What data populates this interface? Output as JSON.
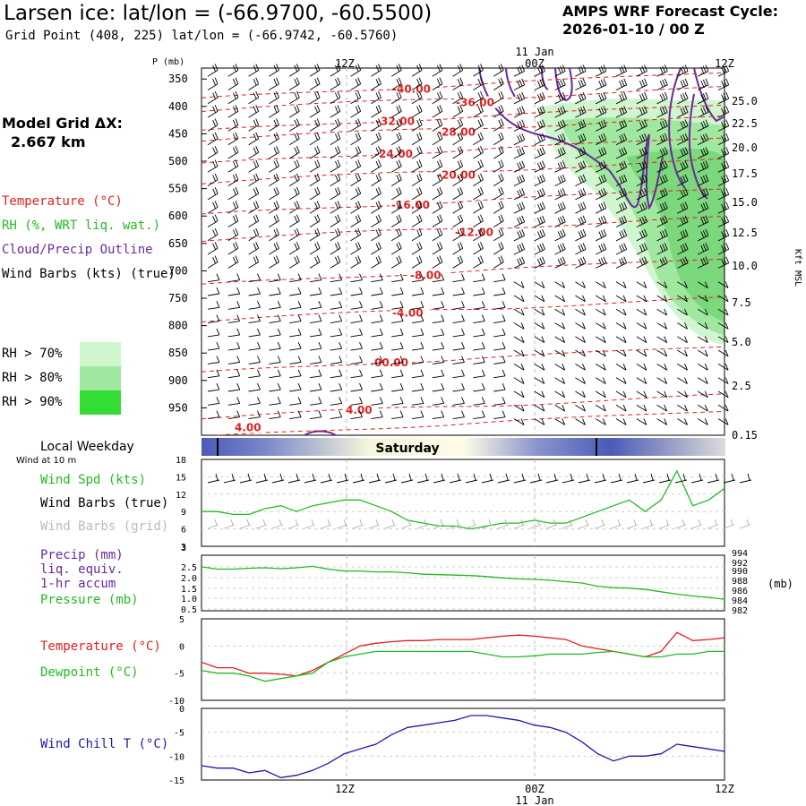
{
  "header": {
    "title": "Larsen ice:  lat/lon = (-66.9700, -60.5500)",
    "subtitle": "Grid Point (408, 225) lat/lon = (-66.9742, -60.5760)",
    "cycle_line1": "AMPS WRF Forecast Cycle:",
    "cycle_line2": "2026-01-10 / 00  Z"
  },
  "model_grid": {
    "label": "Model Grid ΔX:",
    "value": "2.667 km"
  },
  "legend": {
    "temperature": "Temperature (°C)",
    "rh": "RH (%, WRT liq. wat.)",
    "cloud": "Cloud/Precip Outline",
    "wind_barbs": "Wind Barbs (kts) (true)",
    "rh70": "RH > 70%",
    "rh80": "RH > 80%",
    "rh90": "RH > 90%"
  },
  "colors": {
    "temperature": "#e02020",
    "rh": "#22bb22",
    "cloud": "#6a2a9a",
    "wind_chill": "#1a1aaa",
    "rh70": "#d0f6d0",
    "rh80": "#a0e8a0",
    "rh90": "#33dd33"
  },
  "chart_data": [
    {
      "type": "cross-section",
      "title": "Time-pressure cross section",
      "ylabel": "P (mb)",
      "y2label": "Kft MSL",
      "pressure_ticks": [
        "350",
        "400",
        "450",
        "500",
        "550",
        "600",
        "650",
        "700",
        "750",
        "800",
        "850",
        "900",
        "950"
      ],
      "height_ticks": [
        "25.0",
        "22.5",
        "20.0",
        "17.5",
        "15.0",
        "12.5",
        "10.0",
        "7.5",
        "5.0",
        "2.5",
        "0.15"
      ],
      "time_ticks": [
        "12Z",
        "00Z",
        "12Z"
      ],
      "date_label": "11 Jan",
      "temperature_contours": [
        {
          "label": "-40.00",
          "p": 368
        },
        {
          "label": "-36.00",
          "p": 393
        },
        {
          "label": "-32.00",
          "p": 427
        },
        {
          "label": "-28.00",
          "p": 447
        },
        {
          "label": "-24.00",
          "p": 487
        },
        {
          "label": "-20.00",
          "p": 525
        },
        {
          "label": "-16.00",
          "p": 580
        },
        {
          "label": "-12.00",
          "p": 630
        },
        {
          "label": "-8.00",
          "p": 708
        },
        {
          "label": "-4.00",
          "p": 777
        },
        {
          "label": "00.00",
          "p": 868
        },
        {
          "label": "4.00",
          "p": 954
        },
        {
          "label": "4.00",
          "p": 986
        }
      ]
    },
    {
      "type": "line",
      "title": "Wind Spd (kts)",
      "ylim": [
        3,
        18
      ],
      "y_ticks": [
        "18",
        "15",
        "12",
        "9",
        "6",
        "3"
      ],
      "values": [
        9,
        9,
        8.5,
        8.5,
        9.5,
        10,
        9,
        10,
        10.5,
        11,
        11,
        10,
        9,
        7.5,
        7,
        6.5,
        6.5,
        6,
        6.5,
        7,
        7,
        7.5,
        7,
        7,
        8,
        9,
        10,
        11,
        9,
        11,
        16,
        10,
        11,
        13
      ]
    },
    {
      "type": "line",
      "title": "Pressure (mb)",
      "y_ticks": [
        "2.5",
        "2.0",
        "1.5",
        "1.0",
        "0.5",
        "3"
      ],
      "y2_ticks": [
        "994",
        "992",
        "990",
        "988",
        "986",
        "984",
        "982"
      ],
      "y2label": "(mb)",
      "values": [
        991.5,
        991,
        991,
        991.2,
        991.3,
        991.1,
        991.3,
        991.6,
        991,
        990.6,
        990.6,
        990.4,
        990.4,
        990.2,
        989.9,
        989.8,
        989.7,
        989.6,
        989.4,
        989.1,
        988.9,
        988.8,
        988.6,
        988.3,
        988,
        987.3,
        987,
        986.9,
        986.6,
        986.1,
        985.6,
        985.2,
        984.9,
        984.5
      ]
    },
    {
      "type": "line",
      "title": "Temperature / Dewpoint (°C)",
      "ylim": [
        -10,
        5
      ],
      "y_ticks": [
        "5",
        "0",
        "-5",
        "-10"
      ],
      "series": [
        {
          "name": "Temperature",
          "values": [
            -3,
            -4,
            -4,
            -5,
            -5,
            -5.2,
            -5.5,
            -4.5,
            -3,
            -1.5,
            0,
            0.5,
            0.8,
            1,
            1,
            1.2,
            1.2,
            1.2,
            1.5,
            1.8,
            2,
            1.8,
            1.5,
            1.2,
            0,
            -0.5,
            -1,
            -1.5,
            -2,
            -1,
            2.5,
            1,
            1.2,
            1.5
          ]
        },
        {
          "name": "Dewpoint",
          "values": [
            -4.5,
            -5,
            -5,
            -5.5,
            -6.5,
            -6,
            -5.5,
            -5,
            -3,
            -2,
            -1.5,
            -1,
            -1,
            -1,
            -1,
            -1,
            -1,
            -1,
            -1.5,
            -2,
            -2,
            -1.8,
            -1.5,
            -1.5,
            -1.5,
            -1.2,
            -1,
            -1.5,
            -2,
            -2,
            -1.5,
            -1.5,
            -1,
            -1
          ]
        }
      ]
    },
    {
      "type": "line",
      "title": "Wind Chill T (°C)",
      "ylim": [
        -15,
        0
      ],
      "y_ticks": [
        "0",
        "-5",
        "-10",
        "-15"
      ],
      "values": [
        -12,
        -12.5,
        -12.5,
        -13.5,
        -13,
        -14.5,
        -14,
        -13,
        -11.5,
        -9.5,
        -8.5,
        -7.5,
        -5.5,
        -4,
        -3.5,
        -3,
        -2.5,
        -1.5,
        -1.5,
        -2,
        -2.5,
        -3.5,
        -4,
        -5,
        -7,
        -9.5,
        -11,
        -10,
        -10,
        -9.5,
        -7.5,
        -8,
        -8.5,
        -9
      ]
    }
  ],
  "timeseries_labels": {
    "local_weekday": "Local Weekday",
    "wind_10m": "Wind at 10 m",
    "weekday": "Saturday",
    "wind_spd": "Wind Spd (kts)",
    "wind_barbs_true": "Wind Barbs (true)",
    "wind_barbs_grid": "Wind Barbs (grid)",
    "precip": "Precip (mm)",
    "liq": "liq. equiv.",
    "accum": "1-hr accum",
    "pressure": "Pressure (mb)",
    "temperature": "Temperature (°C)",
    "dewpoint": "Dewpoint (°C)",
    "wind_chill": "Wind Chill T (°C)",
    "bottom_12z_a": "12Z",
    "bottom_00z": "00Z",
    "bottom_12z_b": "12Z",
    "bottom_date": "11 Jan"
  }
}
